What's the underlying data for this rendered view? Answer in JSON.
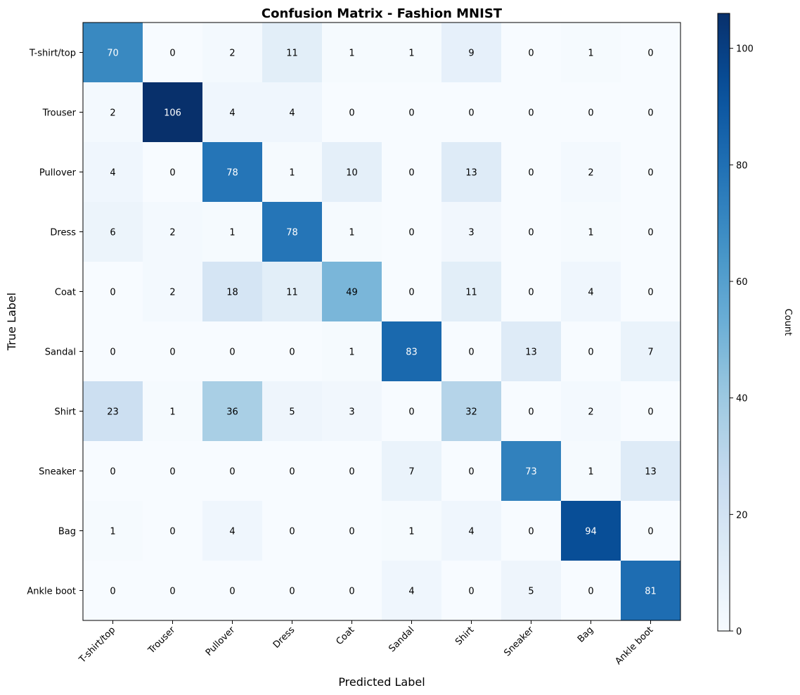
{
  "chart_data": {
    "type": "heatmap",
    "title": "Confusion Matrix - Fashion MNIST",
    "xlabel": "Predicted Label",
    "ylabel": "True Label",
    "x_categories": [
      "T-shirt/top",
      "Trouser",
      "Pullover",
      "Dress",
      "Coat",
      "Sandal",
      "Shirt",
      "Sneaker",
      "Bag",
      "Ankle boot"
    ],
    "y_categories": [
      "T-shirt/top",
      "Trouser",
      "Pullover",
      "Dress",
      "Coat",
      "Sandal",
      "Shirt",
      "Sneaker",
      "Bag",
      "Ankle boot"
    ],
    "values": [
      [
        70,
        0,
        2,
        11,
        1,
        1,
        9,
        0,
        1,
        0
      ],
      [
        2,
        106,
        4,
        4,
        0,
        0,
        0,
        0,
        0,
        0
      ],
      [
        4,
        0,
        78,
        1,
        10,
        0,
        13,
        0,
        2,
        0
      ],
      [
        6,
        2,
        1,
        78,
        1,
        0,
        3,
        0,
        1,
        0
      ],
      [
        0,
        2,
        18,
        11,
        49,
        0,
        11,
        0,
        4,
        0
      ],
      [
        0,
        0,
        0,
        0,
        1,
        83,
        0,
        13,
        0,
        7
      ],
      [
        23,
        1,
        36,
        5,
        3,
        0,
        32,
        0,
        2,
        0
      ],
      [
        0,
        0,
        0,
        0,
        0,
        7,
        0,
        73,
        1,
        13
      ],
      [
        1,
        0,
        4,
        0,
        0,
        1,
        4,
        0,
        94,
        0
      ],
      [
        0,
        0,
        0,
        0,
        0,
        4,
        0,
        5,
        0,
        81
      ]
    ],
    "colormap": "Blues",
    "colorbar": {
      "label": "Count",
      "range": [
        0,
        106
      ],
      "ticks": [
        0,
        20,
        40,
        60,
        80,
        100
      ]
    },
    "grid": false
  }
}
